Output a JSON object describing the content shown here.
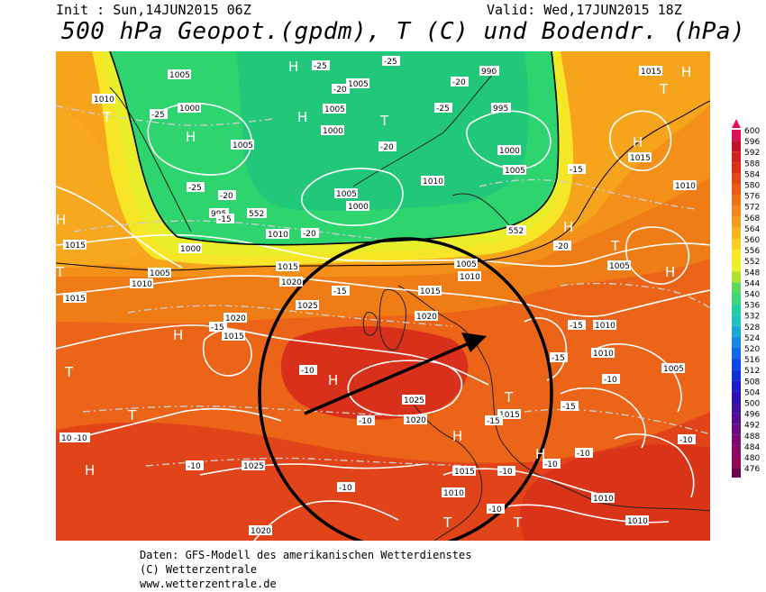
{
  "header": {
    "init": "Init : Sun,14JUN2015 06Z",
    "valid": "Valid: Wed,17JUN2015 18Z",
    "title": "500 hPa Geopot.(gpdm), T (C) und Bodendr. (hPa)"
  },
  "credits": {
    "line1": "Daten: GFS-Modell des amerikanischen Wetterdienstes",
    "line2": "(C) Wetterzentrale",
    "line3": "www.wetterzentrale.de"
  },
  "legend": {
    "levels": [
      "600",
      "596",
      "592",
      "588",
      "584",
      "580",
      "576",
      "572",
      "568",
      "564",
      "560",
      "556",
      "552",
      "548",
      "544",
      "540",
      "536",
      "532",
      "528",
      "524",
      "520",
      "516",
      "512",
      "508",
      "504",
      "500",
      "496",
      "492",
      "488",
      "484",
      "480",
      "476"
    ],
    "colors": [
      "#e0105a",
      "#c8102a",
      "#d81e1e",
      "#e02e14",
      "#e84414",
      "#ec5a14",
      "#f07014",
      "#f48618",
      "#f89c1c",
      "#fcb41c",
      "#fcd022",
      "#fce826",
      "#ecf026",
      "#b0e030",
      "#5cd85c",
      "#40d478",
      "#20d0a0",
      "#1cc4c0",
      "#18a8d8",
      "#1488e4",
      "#1068ec",
      "#0c48f0",
      "#1030e0",
      "#1c1cc8",
      "#2c10b4",
      "#4010a0",
      "#540c90",
      "#680c80",
      "#780a70",
      "#860860",
      "#920650",
      "#6c0450"
    ]
  },
  "map": {
    "pressure_labels": [
      {
        "text": "1005",
        "id": "p1"
      },
      {
        "text": "1010",
        "id": "p2"
      },
      {
        "text": "1000",
        "id": "p3"
      },
      {
        "text": "1005",
        "id": "p4"
      },
      {
        "text": "1000",
        "id": "p5"
      },
      {
        "text": "1005",
        "id": "p6"
      },
      {
        "text": "990",
        "id": "p7"
      },
      {
        "text": "995",
        "id": "p8"
      },
      {
        "text": "1000",
        "id": "p9"
      },
      {
        "text": "1005",
        "id": "p10"
      },
      {
        "text": "1010",
        "id": "p11"
      },
      {
        "text": "1005",
        "id": "p12"
      },
      {
        "text": "1000",
        "id": "p13"
      },
      {
        "text": "995",
        "id": "p14"
      },
      {
        "text": "1000",
        "id": "p15"
      },
      {
        "text": "1005",
        "id": "p16"
      },
      {
        "text": "1010",
        "id": "p17"
      },
      {
        "text": "1015",
        "id": "p18"
      },
      {
        "text": "1015",
        "id": "p19"
      },
      {
        "text": "1020",
        "id": "p20"
      },
      {
        "text": "1025",
        "id": "p21"
      },
      {
        "text": "1020",
        "id": "p22"
      },
      {
        "text": "1015",
        "id": "p23"
      },
      {
        "text": "1020",
        "id": "p24"
      },
      {
        "text": "1025",
        "id": "p25"
      },
      {
        "text": "1020",
        "id": "p26"
      },
      {
        "text": "1015",
        "id": "p27"
      },
      {
        "text": "1010",
        "id": "p28"
      },
      {
        "text": "1005",
        "id": "p29"
      },
      {
        "text": "1010",
        "id": "p30"
      },
      {
        "text": "1015",
        "id": "p31"
      },
      {
        "text": "1010",
        "id": "p32"
      },
      {
        "text": "1020",
        "id": "p33"
      },
      {
        "text": "1025",
        "id": "p34"
      },
      {
        "text": "1020",
        "id": "p35"
      },
      {
        "text": "1015",
        "id": "p36"
      },
      {
        "text": "1010",
        "id": "p37"
      },
      {
        "text": "1010",
        "id": "p38"
      },
      {
        "text": "1010",
        "id": "p39"
      },
      {
        "text": "1005",
        "id": "p40"
      },
      {
        "text": "1010",
        "id": "p41"
      },
      {
        "text": "1015",
        "id": "p42"
      },
      {
        "text": "1005",
        "id": "p43"
      },
      {
        "text": "1015",
        "id": "p44"
      },
      {
        "text": "1005",
        "id": "p45"
      },
      {
        "text": "1010",
        "id": "p46"
      },
      {
        "text": "1015",
        "id": "p47"
      }
    ],
    "temp_labels": [
      "-25",
      "-25",
      "-20",
      "-25",
      "-25",
      "-20",
      "-20",
      "-20",
      "-15",
      "-25",
      "-20",
      "-15",
      "-15",
      "-15",
      "-20",
      "-15",
      "-15",
      "-10",
      "-10",
      "-15",
      "-10",
      "-10",
      "-10",
      "-10",
      "-10",
      "-10",
      "-15",
      "-10",
      "-10",
      "-10"
    ],
    "geopot_labels": [
      "552",
      "552"
    ],
    "highs_lows": [
      "H",
      "T",
      "H",
      "H",
      "T",
      "H",
      "T",
      "H",
      "H",
      "T",
      "H",
      "T",
      "T",
      "H",
      "H",
      "T",
      "T",
      "H",
      "T",
      "H",
      "H",
      "T",
      "H"
    ]
  }
}
